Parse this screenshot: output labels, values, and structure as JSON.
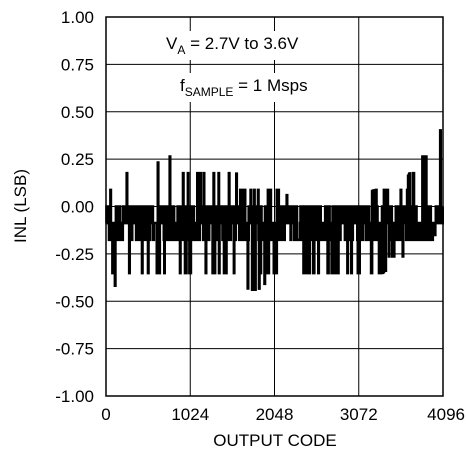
{
  "chart_data": {
    "type": "line",
    "title": "",
    "xlabel": "OUTPUT CODE",
    "ylabel": "INL (LSB)",
    "xlim": [
      0,
      4096
    ],
    "ylim": [
      -1.0,
      1.0
    ],
    "x_ticks": [
      0,
      1024,
      2048,
      3072,
      4096
    ],
    "x_tick_labels": [
      "0",
      "1024",
      "2048",
      "3072",
      "4096"
    ],
    "y_ticks": [
      1.0,
      0.75,
      0.5,
      0.25,
      0.0,
      -0.25,
      -0.5,
      -0.75,
      -1.0
    ],
    "y_tick_labels": [
      "1.00",
      "0.75",
      "0.50",
      "0.25",
      "0.00",
      "-0.25",
      "-0.50",
      "-0.75",
      "-1.00"
    ],
    "grid": true,
    "annotations": [
      {
        "main": "V",
        "sub": "A",
        "rest": " = 2.7V to 3.6V"
      },
      {
        "main": "f",
        "sub": "SAMPLE",
        "rest": " = 1 Msps"
      }
    ],
    "series": [
      {
        "name": "",
        "upper_envelope": {
          "x": [
            0,
            256,
            512,
            768,
            1024,
            1280,
            1536,
            1792,
            2048,
            2304,
            2560,
            2816,
            3072,
            3328,
            3584,
            3712,
            3840,
            3968,
            4032,
            4096
          ],
          "y": [
            0.1,
            0.19,
            0.19,
            0.28,
            0.19,
            0.19,
            0.19,
            0.1,
            0.1,
            0.03,
            0.03,
            0.03,
            0.05,
            0.1,
            0.1,
            0.19,
            0.28,
            0.28,
            0.35,
            0.46
          ]
        },
        "lower_envelope": {
          "x": [
            0,
            256,
            512,
            768,
            1024,
            1280,
            1536,
            1792,
            2048,
            2304,
            2560,
            2816,
            3072,
            3328,
            3584,
            3712,
            3840,
            3968,
            4032,
            4096
          ],
          "y": [
            -0.46,
            -0.36,
            -0.36,
            -0.36,
            -0.36,
            -0.36,
            -0.36,
            -0.46,
            -0.36,
            -0.36,
            -0.36,
            -0.36,
            -0.36,
            -0.36,
            -0.28,
            -0.28,
            -0.19,
            -0.19,
            -0.1,
            -0.1
          ]
        },
        "typical_band": [
          -0.19,
          0.03
        ],
        "points_per_code": 1,
        "num_codes": 4096
      }
    ]
  }
}
